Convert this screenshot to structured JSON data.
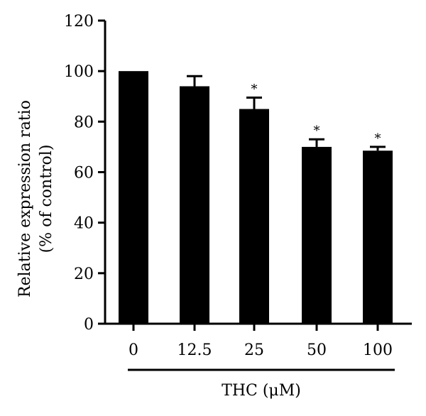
{
  "chart_data": {
    "type": "bar",
    "title": "",
    "categories": [
      "0",
      "12.5",
      "25",
      "50",
      "100"
    ],
    "values": [
      100,
      94,
      85,
      70,
      68.5
    ],
    "errors": [
      0,
      4,
      4.5,
      3,
      1.5
    ],
    "significance": [
      "",
      "",
      "*",
      "*",
      "*"
    ],
    "ylabel_line1": "Relative expression ratio",
    "ylabel_line2": "(% of control)",
    "xlabel": "THC (μM)",
    "ylim": [
      0,
      120
    ],
    "yticks": [
      "0",
      "20",
      "40",
      "60",
      "80",
      "100",
      "120"
    ],
    "bar_color": "#000000",
    "grid": false,
    "legend": "none"
  }
}
